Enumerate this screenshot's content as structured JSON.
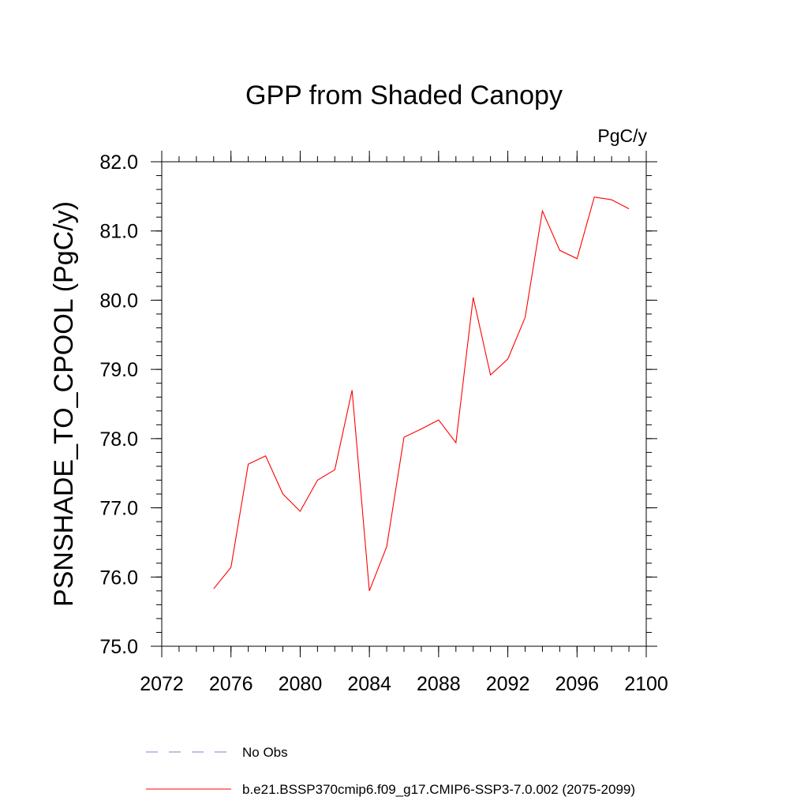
{
  "chart_data": {
    "type": "line",
    "title": "GPP from Shaded Canopy",
    "units_label": "PgC/y",
    "ylabel": "PSNSHADE_TO_CPOOL  (PgC/y)",
    "xlabel": "",
    "xlim": [
      2072,
      2100
    ],
    "ylim": [
      75.0,
      82.0
    ],
    "x_ticks": [
      2072,
      2076,
      2080,
      2084,
      2088,
      2092,
      2096,
      2100
    ],
    "x_tick_labels": [
      "2072",
      "2076",
      "2080",
      "2084",
      "2088",
      "2092",
      "2096",
      "2100"
    ],
    "y_ticks": [
      75,
      76,
      77,
      78,
      79,
      80,
      81,
      82
    ],
    "y_tick_labels": [
      "75.0",
      "76.0",
      "77.0",
      "78.0",
      "79.0",
      "80.0",
      "81.0",
      "82.0"
    ],
    "grid": false,
    "legend_position": "bottom",
    "series": [
      {
        "name": "b.e21.BSSP370cmip6.f09_g17.CMIP6-SSP3-7.0.002 (2075-2099)",
        "color": "#ff0000",
        "dash": "solid",
        "x": [
          2075,
          2076,
          2077,
          2078,
          2079,
          2080,
          2081,
          2082,
          2083,
          2084,
          2085,
          2086,
          2087,
          2088,
          2089,
          2090,
          2091,
          2092,
          2093,
          2094,
          2095,
          2096,
          2097,
          2098,
          2099
        ],
        "y": [
          75.83,
          76.14,
          77.63,
          77.75,
          77.2,
          76.95,
          77.4,
          77.55,
          78.7,
          75.8,
          76.44,
          78.02,
          78.14,
          78.27,
          77.94,
          80.04,
          78.92,
          79.15,
          79.75,
          81.29,
          80.72,
          80.6,
          81.49,
          81.45,
          81.32
        ]
      }
    ],
    "legend": [
      {
        "label": "No Obs",
        "color": "#8080cc",
        "dash": "dashed"
      },
      {
        "label": "b.e21.BSSP370cmip6.f09_g17.CMIP6-SSP3-7.0.002 (2075-2099)",
        "color": "#ff0000",
        "dash": "solid"
      }
    ]
  }
}
